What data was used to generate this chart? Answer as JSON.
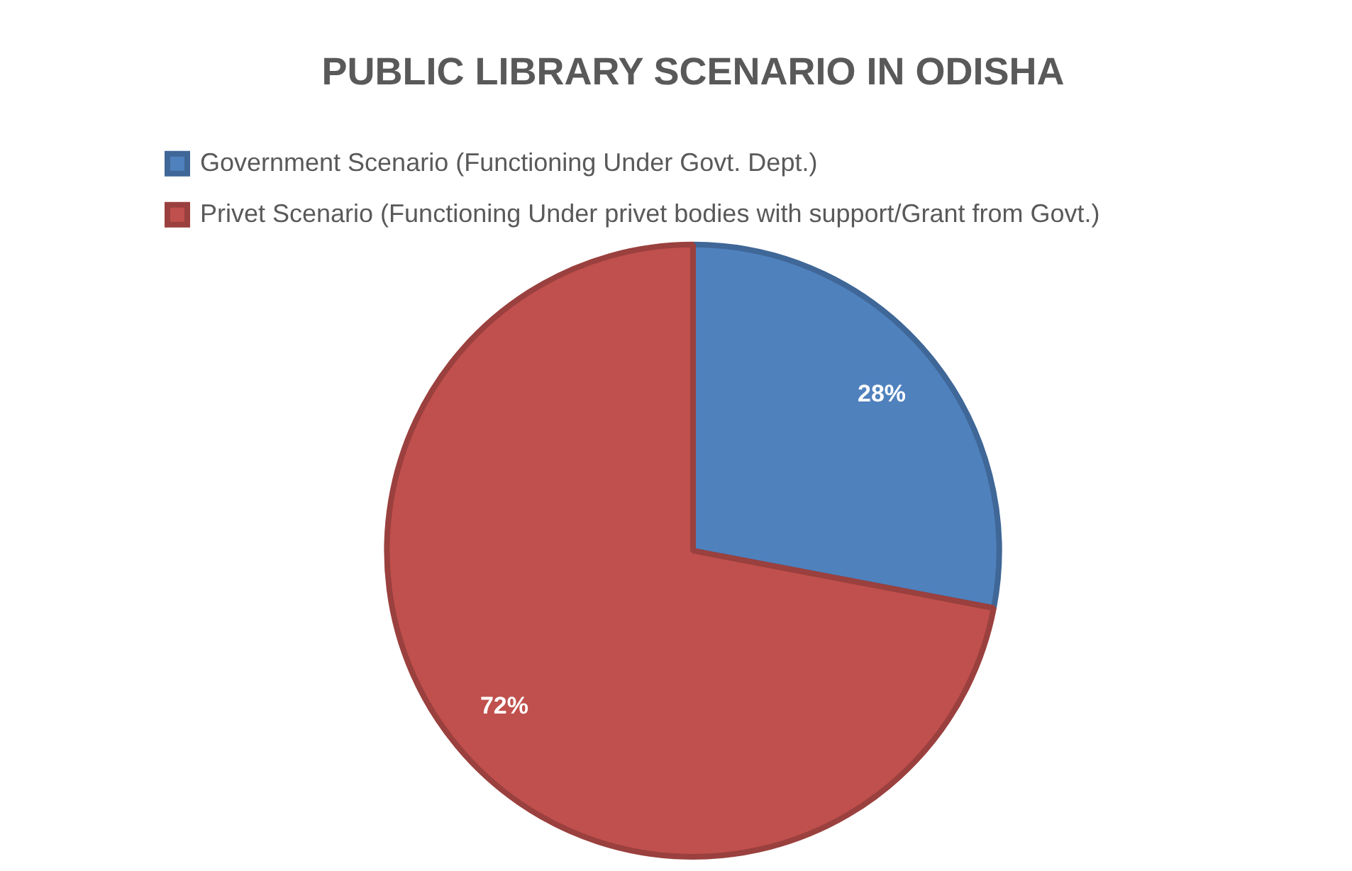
{
  "chart_data": {
    "type": "pie",
    "title": "PUBLIC LIBRARY SCENARIO IN ODISHA",
    "categories": [
      "Government Scenario (Functioning Under Govt. Dept.)",
      "Privet Scenario (Functioning Under privet bodies with support/Grant from Govt.)"
    ],
    "values": [
      28,
      72
    ],
    "colors": [
      "#4f81bd",
      "#c0504d"
    ],
    "value_labels": [
      "28%",
      "72%"
    ],
    "legend": "top"
  }
}
